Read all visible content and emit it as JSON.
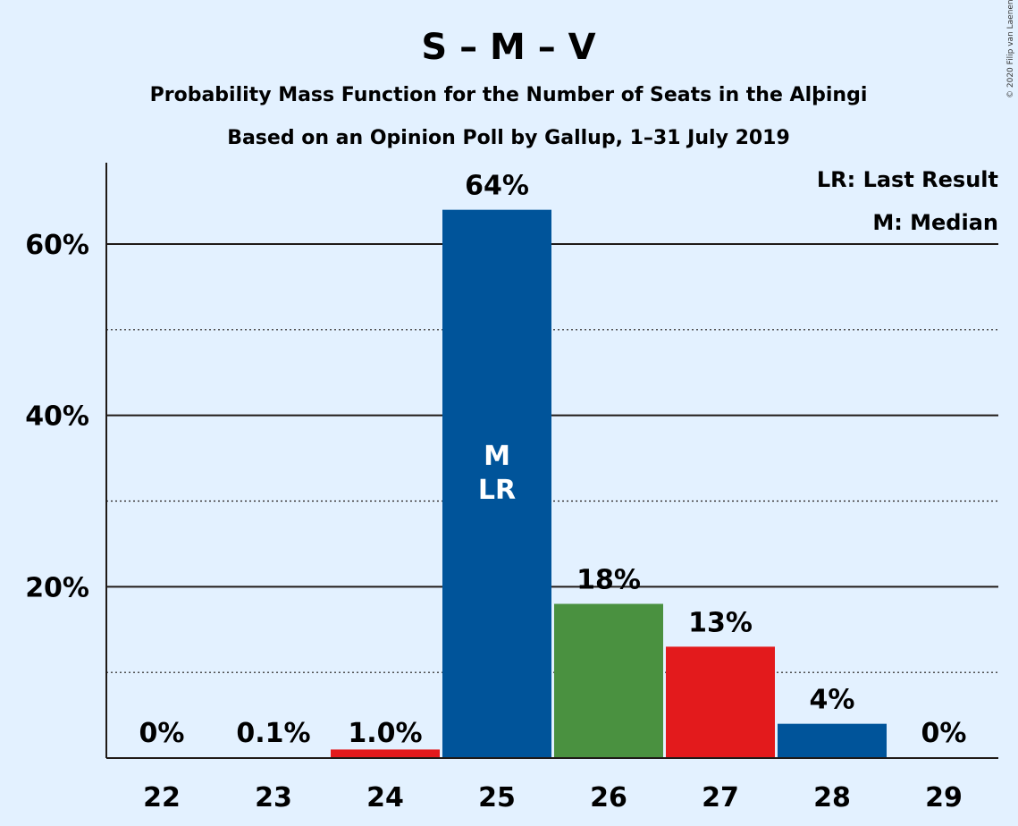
{
  "chart_data": {
    "type": "bar",
    "title": "S – M – V",
    "subtitle": "Probability Mass Function for the Number of Seats in the Alþingi",
    "subtitle2": "Based on an Opinion Poll by Gallup, 1–31 July 2019",
    "credit": "© 2020 Filip van Laenen",
    "categories": [
      "22",
      "23",
      "24",
      "25",
      "26",
      "27",
      "28",
      "29"
    ],
    "values": [
      0,
      0.1,
      1.0,
      64,
      18,
      13,
      4,
      0
    ],
    "data_labels": [
      "0%",
      "0.1%",
      "1.0%",
      "64%",
      "18%",
      "13%",
      "4%",
      "0%"
    ],
    "bar_colors": [
      "#e31a1c",
      "#e31a1c",
      "#e31a1c",
      "#00549a",
      "#4a9140",
      "#e31a1c",
      "#00549a",
      "#00549a"
    ],
    "ylim": [
      0,
      70
    ],
    "yticks": [
      20,
      40,
      60
    ],
    "ytick_labels": [
      "20%",
      "40%",
      "60%"
    ],
    "minor_gridlines": [
      10,
      30,
      50
    ],
    "in_bar_labels": {
      "category": "25",
      "lines": [
        "M",
        "LR"
      ]
    },
    "legend": {
      "position": "top-right",
      "entries": [
        "LR: Last Result",
        "M: Median"
      ]
    },
    "grid": true
  }
}
